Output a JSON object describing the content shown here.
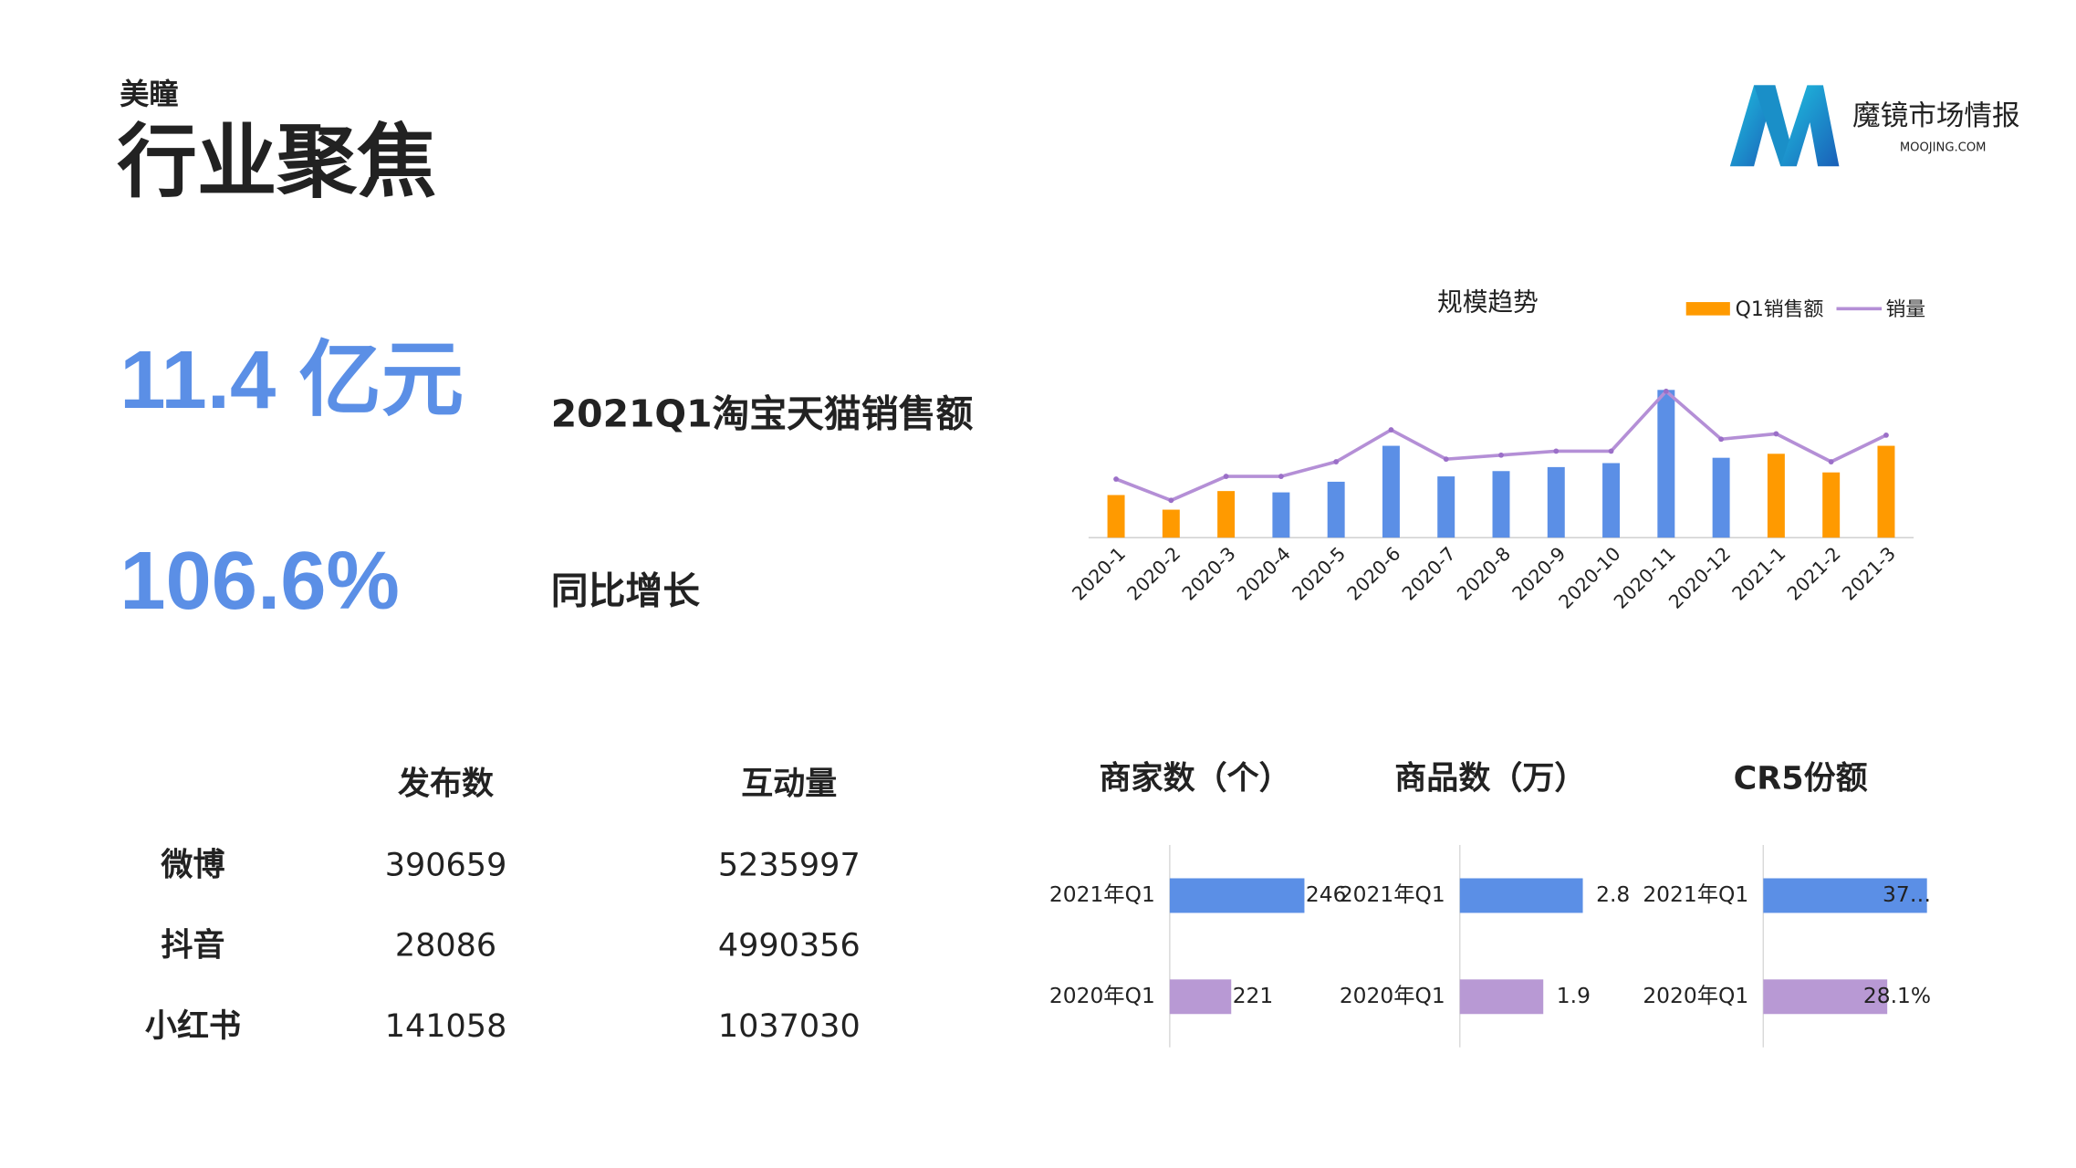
{
  "header": {
    "subtitle": "美瞳",
    "title": "行业聚焦"
  },
  "logo": {
    "name": "魔镜市场情报",
    "site": "MOOJING.COM"
  },
  "highlights": [
    {
      "value": "11.4 亿元",
      "label": "2021Q1淘宝天猫销售额"
    },
    {
      "value": "106.6%",
      "label": "同比增长"
    }
  ],
  "table": {
    "columns": [
      "发布数",
      "互动量"
    ],
    "rows": [
      [
        "微博",
        "390659",
        "5235997"
      ],
      [
        "抖音",
        "28086",
        "4990356"
      ],
      [
        "小红书",
        "141058",
        "1037030"
      ]
    ]
  },
  "chart_data": [
    {
      "type": "bar-line",
      "title": "规模趋势",
      "legend": "top-right",
      "categories": [
        "2020-1",
        "2020-2",
        "2020-3",
        "2020-4",
        "2020-5",
        "2020-6",
        "2020-7",
        "2020-8",
        "2020-9",
        "2020-10",
        "2020-11",
        "2020-12",
        "2021-1",
        "2021-2",
        "2021-3"
      ],
      "series": [
        {
          "name": "Q1销售额",
          "type": "bar",
          "color": "#ff9a00",
          "colors": [
            "#ff9a00",
            "#ff9a00",
            "#ff9a00",
            "#5b8fe6",
            "#5b8fe6",
            "#5b8fe6",
            "#5b8fe6",
            "#5b8fe6",
            "#5b8fe6",
            "#5b8fe6",
            "#5b8fe6",
            "#5b8fe6",
            "#ff9a00",
            "#ff9a00",
            "#ff9a00"
          ],
          "values": [
            32,
            21,
            35,
            34,
            42,
            69,
            46,
            50,
            53,
            56,
            111,
            60,
            63,
            49,
            69
          ]
        },
        {
          "name": "销量",
          "type": "line",
          "color": "#b48fd6",
          "values": [
            44,
            28,
            46,
            46,
            57,
            81,
            59,
            62,
            65,
            65,
            110,
            74,
            78,
            57,
            77
          ]
        }
      ],
      "ylim": [
        0,
        115
      ]
    },
    {
      "type": "hbar",
      "title": "商家数（个）",
      "categories": [
        "2021年Q1",
        "2020年Q1"
      ],
      "values": [
        246,
        221
      ],
      "colors": [
        "#5b8fe6",
        "#b899d4"
      ],
      "xlim": [
        200,
        250
      ]
    },
    {
      "type": "hbar",
      "title": "商品数（万）",
      "categories": [
        "2021年Q1",
        "2020年Q1"
      ],
      "values": [
        2.8,
        1.9
      ],
      "colors": [
        "#5b8fe6",
        "#b899d4"
      ],
      "xlim": [
        0,
        3
      ]
    },
    {
      "type": "hbar",
      "title": "CR5份额",
      "categories": [
        "2021年Q1",
        "2020年Q1"
      ],
      "values": [
        37.1,
        28.1
      ],
      "value_labels": [
        "37…",
        "28.1%"
      ],
      "colors": [
        "#5b8fe6",
        "#b899d4"
      ],
      "xlim": [
        0,
        38
      ]
    }
  ]
}
